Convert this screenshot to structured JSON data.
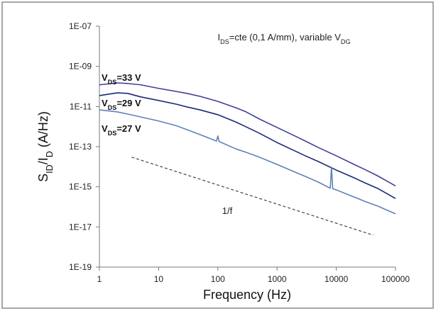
{
  "chart_data": {
    "type": "line",
    "scale": {
      "x": "log",
      "y": "log"
    },
    "title": [
      {
        "t": "I"
      },
      {
        "t": "DS",
        "sub": true
      },
      {
        "t": "=cte (0,1 A/mm), variable V"
      },
      {
        "t": "DG",
        "sub": true
      }
    ],
    "xlabel": [
      {
        "t": "Frequency (Hz)"
      }
    ],
    "ylabel": [
      {
        "t": "S"
      },
      {
        "t": "ID",
        "sub": true
      },
      {
        "t": "/I"
      },
      {
        "t": "D",
        "sub": true
      },
      {
        "t": " (A/Hz)"
      }
    ],
    "xlim": [
      1,
      100000
    ],
    "ylim": [
      1e-19,
      1e-07
    ],
    "xticks": [
      "1",
      "10",
      "100",
      "1000",
      "10000",
      "100000"
    ],
    "yticks": [
      "1E-07",
      "1E-09",
      "1E-11",
      "1E-13",
      "1E-15",
      "1E-17",
      "1E-19"
    ],
    "grid": false,
    "legend": "inline labels at left of curves",
    "series": [
      {
        "label": [
          {
            "t": "V"
          },
          {
            "t": "DS",
            "sub": true
          },
          {
            "t": "=33 V"
          }
        ],
        "color": "#3f3f9a",
        "x": [
          1,
          2,
          3,
          5,
          10,
          20,
          30,
          50,
          100,
          200,
          300,
          500,
          1000,
          2000,
          3000,
          5000,
          10000,
          20000,
          30000,
          50000,
          100000
        ],
        "y": [
          1.2e-10,
          1.5e-10,
          1.4e-10,
          1.2e-10,
          8e-11,
          5.6e-11,
          4.5e-11,
          3.2e-11,
          1.8e-11,
          8.7e-12,
          5.4e-12,
          2.4e-12,
          9e-13,
          3.4e-13,
          1.9e-13,
          9e-14,
          3.5e-14,
          1.3e-14,
          7.4e-15,
          3.5e-15,
          1.1e-15
        ]
      },
      {
        "label": [
          {
            "t": "V"
          },
          {
            "t": "DS",
            "sub": true
          },
          {
            "t": "=29 V"
          }
        ],
        "color": "#1a2a78",
        "x": [
          1,
          2,
          3,
          5,
          10,
          20,
          30,
          50,
          100,
          200,
          300,
          500,
          1000,
          2000,
          3000,
          5000,
          10000,
          20000,
          30000,
          50000,
          100000
        ],
        "y": [
          3.5e-11,
          4.8e-11,
          4.5e-11,
          3e-11,
          2e-11,
          1.3e-11,
          9.5e-12,
          6.8e-12,
          3.9e-12,
          1.7e-12,
          9.7e-13,
          4.7e-13,
          1.6e-13,
          6.1e-14,
          3.5e-14,
          1.8e-14,
          6.8e-15,
          2.8e-15,
          1.6e-15,
          8.3e-16,
          2.6e-16
        ]
      },
      {
        "label": [
          {
            "t": "V"
          },
          {
            "t": "DS",
            "sub": true
          },
          {
            "t": "=27 V"
          }
        ],
        "color": "#5d82b8",
        "x": [
          1,
          2,
          3,
          5,
          10,
          20,
          30,
          50,
          95,
          100,
          105,
          200,
          300,
          500,
          1000,
          2000,
          3000,
          5000,
          7900,
          8300,
          8700,
          10000,
          20000,
          30000,
          50000,
          100000
        ],
        "y": [
          6.8e-12,
          5.4e-12,
          4.2e-12,
          3e-12,
          1.9e-12,
          1.1e-12,
          7e-13,
          4e-13,
          1.9e-13,
          3.4e-13,
          1.8e-13,
          7.8e-14,
          5.2e-14,
          3e-14,
          1.3e-14,
          5.4e-15,
          3.3e-15,
          1.7e-15,
          8.5e-16,
          9.5e-15,
          8e-16,
          7e-16,
          3.1e-16,
          1.9e-16,
          1.1e-16,
          4.5e-17
        ]
      }
    ],
    "reference_line": {
      "label": "1/f",
      "style": "dashed",
      "color": "#444444",
      "x": [
        3.5,
        42000
      ],
      "y": [
        3e-14,
        3.9e-18
      ]
    }
  }
}
